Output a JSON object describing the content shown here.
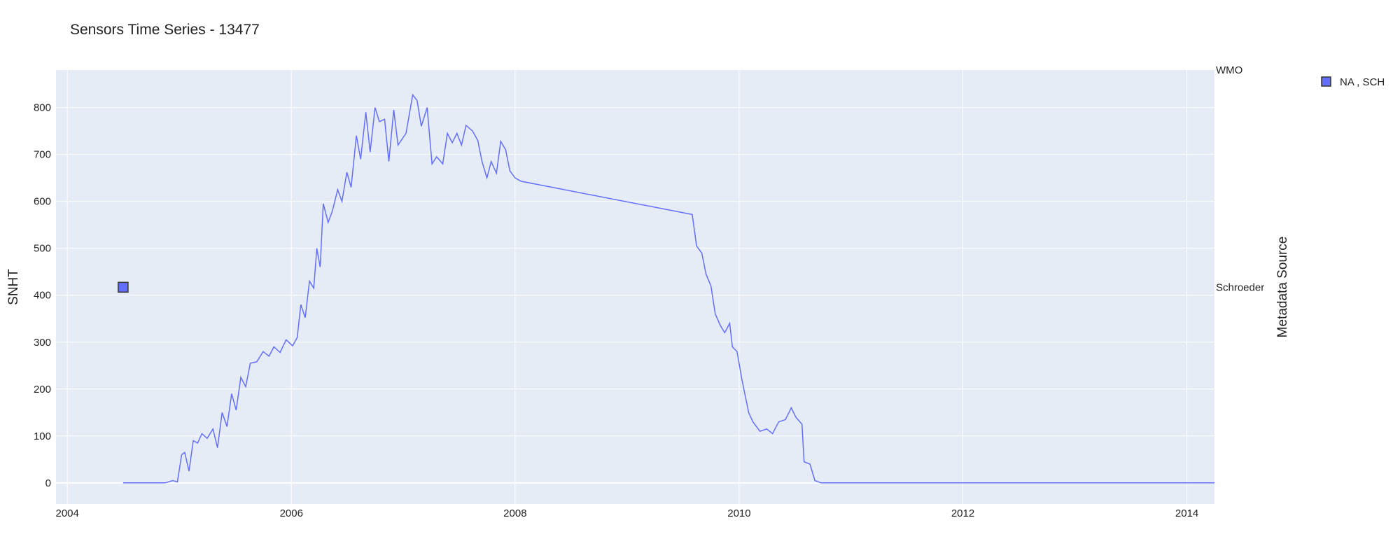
{
  "chart_data": {
    "type": "line",
    "title": "Sensors Time Series - 13477",
    "ylabel": "SNHT",
    "y2label": "Metadata Source",
    "xlim": [
      "2003-11-25",
      "2014-04-01"
    ],
    "ylim": [
      -45,
      880
    ],
    "x_ticks": [
      {
        "date": "2004-01-01",
        "label": "2004"
      },
      {
        "date": "2006-01-01",
        "label": "2006"
      },
      {
        "date": "2008-01-01",
        "label": "2008"
      },
      {
        "date": "2010-01-01",
        "label": "2010"
      },
      {
        "date": "2012-01-01",
        "label": "2012"
      },
      {
        "date": "2014-01-01",
        "label": "2014"
      }
    ],
    "y_ticks": [
      0,
      100,
      200,
      300,
      400,
      500,
      600,
      700,
      800
    ],
    "y2_categories": [
      {
        "label": "WMO",
        "y": 880
      },
      {
        "label": "Schroeder",
        "y": 417
      }
    ],
    "legend": {
      "placement": "top-right",
      "entries": [
        "NA , SCH"
      ]
    },
    "colors": {
      "line": "#636efa",
      "plot_bg": "#e5ecf6",
      "grid": "#ffffff"
    },
    "series": [
      {
        "points": [
          [
            "2004-07-01",
            0
          ],
          [
            "2004-11-15",
            0
          ],
          [
            "2004-12-10",
            5
          ],
          [
            "2004-12-25",
            2
          ],
          [
            "2005-01-08",
            60
          ],
          [
            "2005-01-18",
            65
          ],
          [
            "2005-02-01",
            25
          ],
          [
            "2005-02-15",
            90
          ],
          [
            "2005-03-01",
            85
          ],
          [
            "2005-03-15",
            105
          ],
          [
            "2005-04-01",
            95
          ],
          [
            "2005-04-20",
            115
          ],
          [
            "2005-05-05",
            75
          ],
          [
            "2005-05-20",
            150
          ],
          [
            "2005-06-05",
            120
          ],
          [
            "2005-06-20",
            190
          ],
          [
            "2005-07-05",
            155
          ],
          [
            "2005-07-20",
            225
          ],
          [
            "2005-08-05",
            205
          ],
          [
            "2005-08-20",
            255
          ],
          [
            "2005-09-10",
            258
          ],
          [
            "2005-10-01",
            280
          ],
          [
            "2005-10-20",
            270
          ],
          [
            "2005-11-05",
            290
          ],
          [
            "2005-11-25",
            278
          ],
          [
            "2005-12-15",
            305
          ],
          [
            "2006-01-05",
            292
          ],
          [
            "2006-01-20",
            310
          ],
          [
            "2006-02-01",
            380
          ],
          [
            "2006-02-15",
            352
          ],
          [
            "2006-03-01",
            430
          ],
          [
            "2006-03-15",
            415
          ],
          [
            "2006-03-25",
            500
          ],
          [
            "2006-04-05",
            460
          ],
          [
            "2006-04-15",
            595
          ],
          [
            "2006-05-01",
            555
          ],
          [
            "2006-05-15",
            580
          ],
          [
            "2006-06-01",
            625
          ],
          [
            "2006-06-15",
            600
          ],
          [
            "2006-07-01",
            662
          ],
          [
            "2006-07-15",
            630
          ],
          [
            "2006-08-01",
            740
          ],
          [
            "2006-08-15",
            690
          ],
          [
            "2006-09-01",
            790
          ],
          [
            "2006-09-15",
            705
          ],
          [
            "2006-10-01",
            800
          ],
          [
            "2006-10-15",
            770
          ],
          [
            "2006-11-01",
            775
          ],
          [
            "2006-11-15",
            685
          ],
          [
            "2006-12-01",
            795
          ],
          [
            "2006-12-15",
            720
          ],
          [
            "2007-01-10",
            745
          ],
          [
            "2007-02-01",
            827
          ],
          [
            "2007-02-15",
            815
          ],
          [
            "2007-03-01",
            760
          ],
          [
            "2007-03-20",
            800
          ],
          [
            "2007-04-05",
            680
          ],
          [
            "2007-04-20",
            695
          ],
          [
            "2007-05-10",
            680
          ],
          [
            "2007-05-25",
            745
          ],
          [
            "2007-06-10",
            725
          ],
          [
            "2007-06-25",
            745
          ],
          [
            "2007-07-10",
            720
          ],
          [
            "2007-07-25",
            762
          ],
          [
            "2007-08-15",
            750
          ],
          [
            "2007-09-01",
            730
          ],
          [
            "2007-09-15",
            685
          ],
          [
            "2007-10-01",
            650
          ],
          [
            "2007-10-15",
            685
          ],
          [
            "2007-11-01",
            660
          ],
          [
            "2007-11-15",
            728
          ],
          [
            "2007-12-01",
            710
          ],
          [
            "2007-12-15",
            665
          ],
          [
            "2008-01-01",
            650
          ],
          [
            "2008-01-20",
            643
          ],
          [
            "2009-08-01",
            572
          ],
          [
            "2009-08-15",
            505
          ],
          [
            "2009-09-01",
            490
          ],
          [
            "2009-09-15",
            445
          ],
          [
            "2009-10-01",
            420
          ],
          [
            "2009-10-15",
            360
          ],
          [
            "2009-11-01",
            335
          ],
          [
            "2009-11-15",
            320
          ],
          [
            "2009-12-01",
            340
          ],
          [
            "2009-12-10",
            290
          ],
          [
            "2009-12-25",
            280
          ],
          [
            "2010-01-10",
            220
          ],
          [
            "2010-02-01",
            150
          ],
          [
            "2010-02-15",
            130
          ],
          [
            "2010-03-10",
            110
          ],
          [
            "2010-04-01",
            115
          ],
          [
            "2010-04-20",
            105
          ],
          [
            "2010-05-10",
            130
          ],
          [
            "2010-06-01",
            135
          ],
          [
            "2010-06-20",
            160
          ],
          [
            "2010-07-05",
            140
          ],
          [
            "2010-07-25",
            125
          ],
          [
            "2010-08-01",
            45
          ],
          [
            "2010-08-20",
            40
          ],
          [
            "2010-09-05",
            5
          ],
          [
            "2010-09-25",
            0
          ],
          [
            "2014-04-01",
            0
          ]
        ]
      },
      {
        "name": "NA , SCH",
        "type": "scatter",
        "points": [
          [
            "2004-07-01",
            417
          ]
        ]
      }
    ]
  }
}
